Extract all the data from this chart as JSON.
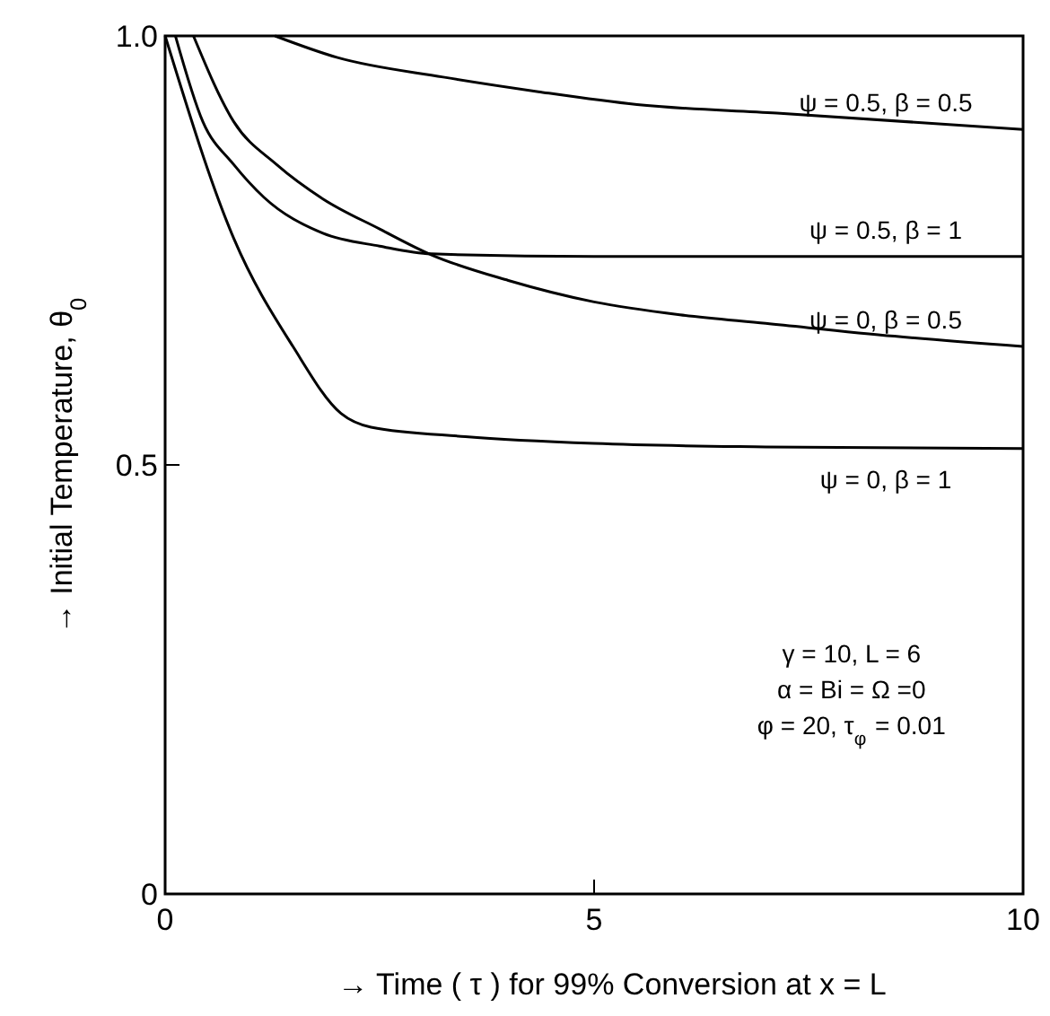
{
  "chart_data": {
    "type": "line",
    "xlabel": "→ Time ( τ ) for 99% Conversion at x = L",
    "ylabel": "→ Initial Temperature, θ$_{0}$",
    "xlim": [
      0,
      10
    ],
    "ylim": [
      0,
      1
    ],
    "xticks": [
      0,
      5,
      10
    ],
    "yticks": [
      0,
      {
        "value": 0.5,
        "label": "0.5"
      },
      {
        "value": 1,
        "label": "1.0"
      }
    ],
    "grid": false,
    "marker": "none",
    "line_style": "solid",
    "series": [
      {
        "name": "ψ = 0, β = 1",
        "color": "#000000",
        "x": [
          0,
          0.8,
          1.49,
          2.05,
          2.4,
          3.5,
          5,
          7,
          10
        ],
        "values": [
          1,
          0.764,
          0.638,
          0.56,
          0.544,
          0.533,
          0.525,
          0.521,
          0.519
        ]
      },
      {
        "name": "ψ = 0.5, β = 1",
        "color": "#000000",
        "x": [
          0.12,
          0.44,
          0.8,
          1.15,
          1.84,
          2.5,
          3.1,
          5,
          7,
          10
        ],
        "values": [
          1,
          0.9,
          0.85,
          0.812,
          0.77,
          0.755,
          0.746,
          0.743,
          0.743,
          0.743
        ]
      },
      {
        "name": "ψ = 0, β =  0.5",
        "color": "#000000",
        "x": [
          0.33,
          0.8,
          1.3,
          1.84,
          2.5,
          3.1,
          4,
          5,
          6,
          7,
          8.5,
          10
        ],
        "values": [
          1,
          0.9,
          0.85,
          0.81,
          0.775,
          0.745,
          0.715,
          0.69,
          0.675,
          0.665,
          0.65,
          0.638
        ]
      },
      {
        "name": "ψ = 0.5, β = 0.5",
        "color": "#000000",
        "x": [
          1.28,
          2,
          3.24,
          4.35,
          5.5,
          7.13,
          10
        ],
        "values": [
          1,
          0.975,
          0.952,
          0.935,
          0.92,
          0.91,
          0.891
        ]
      }
    ],
    "annotations": [
      "γ = 10, L = 6",
      "α = Bi = Ω =0",
      "φ = 20, τ$_{φ}$ = 0.01"
    ]
  }
}
